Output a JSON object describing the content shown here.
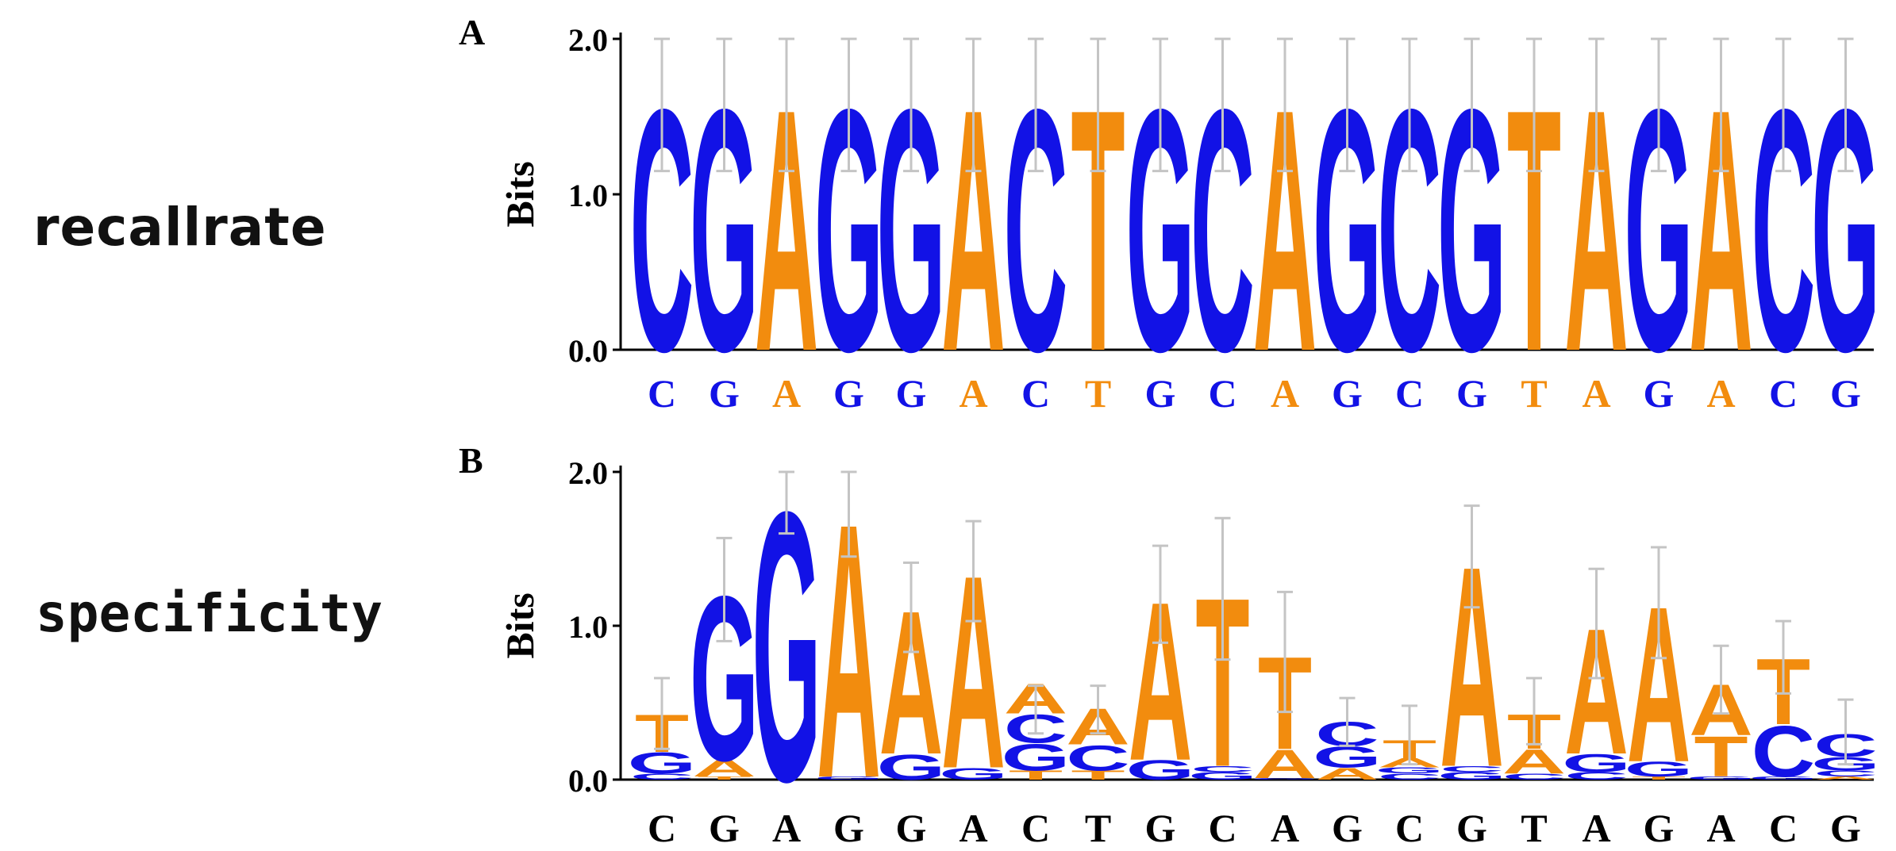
{
  "colors": {
    "purine": "#F28C0E",
    "pyrimidine": "#1212E6",
    "errorbar": "#C4C4C4",
    "axis": "#000000"
  },
  "row_labels": {
    "recall": "recallrate",
    "specificity": "specificity"
  },
  "chart_data": [
    {
      "type": "sequence-logo",
      "panel_label": "A",
      "ylabel": "Bits",
      "ylim": [
        0,
        2
      ],
      "yticks": [
        "0.0",
        "1.0",
        "2.0"
      ],
      "x_ticks": [
        "C",
        "G",
        "A",
        "G",
        "G",
        "A",
        "C",
        "T",
        "G",
        "C",
        "A",
        "G",
        "C",
        "G",
        "T",
        "A",
        "G",
        "A",
        "C",
        "G"
      ],
      "x_tick_style": "colored",
      "error_top": [
        2,
        2,
        2,
        2,
        2,
        2,
        2,
        2,
        2,
        2,
        2,
        2,
        2,
        2,
        2,
        2,
        2,
        2,
        2,
        2
      ],
      "error_bottom": [
        1.15,
        1.15,
        1.15,
        1.15,
        1.15,
        1.15,
        1.15,
        1.15,
        1.15,
        1.15,
        1.15,
        1.15,
        1.15,
        1.15,
        1.15,
        1.15,
        1.15,
        1.15,
        1.15,
        1.15
      ],
      "positions": [
        [
          [
            "C",
            1.6
          ]
        ],
        [
          [
            "G",
            1.6
          ]
        ],
        [
          [
            "A",
            1.6
          ]
        ],
        [
          [
            "G",
            1.6
          ]
        ],
        [
          [
            "G",
            1.6
          ]
        ],
        [
          [
            "A",
            1.6
          ]
        ],
        [
          [
            "C",
            1.6
          ]
        ],
        [
          [
            "T",
            1.6
          ]
        ],
        [
          [
            "G",
            1.6
          ]
        ],
        [
          [
            "C",
            1.6
          ]
        ],
        [
          [
            "A",
            1.6
          ]
        ],
        [
          [
            "G",
            1.6
          ]
        ],
        [
          [
            "C",
            1.6
          ]
        ],
        [
          [
            "G",
            1.6
          ]
        ],
        [
          [
            "T",
            1.6
          ]
        ],
        [
          [
            "A",
            1.6
          ]
        ],
        [
          [
            "G",
            1.6
          ]
        ],
        [
          [
            "A",
            1.6
          ]
        ],
        [
          [
            "C",
            1.6
          ]
        ],
        [
          [
            "G",
            1.6
          ]
        ]
      ]
    },
    {
      "type": "sequence-logo",
      "panel_label": "B",
      "ylabel": "Bits",
      "ylim": [
        0,
        2
      ],
      "yticks": [
        "0.0",
        "1.0",
        "2.0"
      ],
      "x_ticks": [
        "C",
        "G",
        "A",
        "G",
        "G",
        "A",
        "C",
        "T",
        "G",
        "C",
        "A",
        "G",
        "C",
        "G",
        "T",
        "A",
        "G",
        "A",
        "C",
        "G"
      ],
      "x_tick_style": "black",
      "error_top": [
        0.66,
        1.57,
        2.0,
        2.0,
        1.41,
        1.68,
        0.61,
        0.61,
        1.52,
        1.7,
        1.22,
        0.53,
        0.48,
        1.78,
        0.66,
        1.37,
        1.51,
        0.87,
        1.03,
        0.52
      ],
      "error_bottom": [
        0.2,
        0.9,
        1.6,
        1.45,
        0.83,
        1.03,
        0.3,
        0.3,
        0.89,
        0.78,
        0.44,
        0.22,
        0.1,
        1.12,
        0.23,
        0.66,
        0.79,
        0.43,
        0.56,
        0.1
      ],
      "positions": [
        [
          [
            "C",
            0.04
          ],
          [
            "G",
            0.14
          ],
          [
            "T",
            0.25
          ]
        ],
        [
          [
            "T",
            0.02
          ],
          [
            "A",
            0.11
          ],
          [
            "G",
            1.1
          ]
        ],
        [
          [
            "G",
            1.8
          ]
        ],
        [
          [
            "G",
            0.02
          ],
          [
            "A",
            1.7
          ]
        ],
        [
          [
            "G",
            0.17
          ],
          [
            "A",
            0.96
          ]
        ],
        [
          [
            "G",
            0.08
          ],
          [
            "A",
            1.29
          ]
        ],
        [
          [
            "T",
            0.06
          ],
          [
            "G",
            0.18
          ],
          [
            "C",
            0.19
          ],
          [
            "A",
            0.2
          ]
        ],
        [
          [
            "T",
            0.06
          ],
          [
            "C",
            0.17
          ],
          [
            "A",
            0.24
          ]
        ],
        [
          [
            "G",
            0.13
          ],
          [
            "A",
            1.06
          ]
        ],
        [
          [
            "G",
            0.05
          ],
          [
            "C",
            0.04
          ],
          [
            "T",
            1.13
          ]
        ],
        [
          [
            "G",
            0.01
          ],
          [
            "A",
            0.19
          ],
          [
            "T",
            0.62
          ]
        ],
        [
          [
            "A",
            0.08
          ],
          [
            "G",
            0.14
          ],
          [
            "C",
            0.16
          ]
        ],
        [
          [
            "C",
            0.04
          ],
          [
            "G",
            0.04
          ],
          [
            "A",
            0.06
          ],
          [
            "T",
            0.12
          ]
        ],
        [
          [
            "G",
            0.05
          ],
          [
            "C",
            0.04
          ],
          [
            "A",
            1.34
          ]
        ],
        [
          [
            "C",
            0.04
          ],
          [
            "A",
            0.16
          ],
          [
            "T",
            0.23
          ]
        ],
        [
          [
            "C",
            0.05
          ],
          [
            "G",
            0.12
          ],
          [
            "A",
            0.84
          ]
        ],
        [
          [
            "T",
            0.02
          ],
          [
            "G",
            0.1
          ],
          [
            "A",
            1.04
          ]
        ],
        [
          [
            "G",
            0.02
          ],
          [
            "T",
            0.27
          ],
          [
            "A",
            0.34
          ]
        ],
        [
          [
            "G",
            0.02
          ],
          [
            "C",
            0.34
          ],
          [
            "T",
            0.44
          ]
        ],
        [
          [
            "A",
            0.02
          ],
          [
            "C",
            0.04
          ],
          [
            "G",
            0.09
          ],
          [
            "C",
            0.15
          ]
        ]
      ]
    }
  ]
}
